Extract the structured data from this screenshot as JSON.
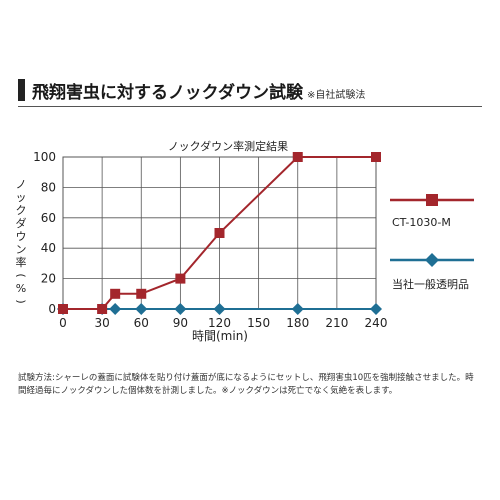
{
  "heading": {
    "title": "飛翔害虫に対するノックダウン試験",
    "note": "※自社試験法"
  },
  "chart_data": {
    "type": "line",
    "title": "ノックダウン率測定結果",
    "ylabel": "ノックダウン率(%)",
    "xlabel": "時間(min)",
    "xlim": [
      0,
      240
    ],
    "ylim": [
      0,
      100
    ],
    "x_ticks": [
      "0",
      "30",
      "60",
      "90",
      "120",
      "150",
      "180",
      "210",
      "240"
    ],
    "y_ticks": [
      "0",
      "20",
      "40",
      "60",
      "80",
      "100"
    ],
    "grid": true,
    "legend_position": "right",
    "series": [
      {
        "name": "CT-1030-M",
        "color": "#a3262c",
        "marker": "square",
        "x": [
          0,
          30,
          40,
          60,
          90,
          120,
          180,
          240
        ],
        "y": [
          0,
          0,
          10,
          10,
          20,
          50,
          100,
          100
        ]
      },
      {
        "name": "当社一般透明品",
        "color": "#1f6f94",
        "marker": "diamond",
        "x": [
          0,
          30,
          40,
          60,
          90,
          120,
          180,
          240
        ],
        "y": [
          0,
          0,
          0,
          0,
          0,
          0,
          0,
          0
        ]
      }
    ]
  },
  "footnote": "試験方法:シャーレの蓋面に試験体を貼り付け蓋面が底になるようにセットし、飛翔害虫10匹を強制接触させました。時間経過毎にノックダウンした個体数を計測しました。※ノックダウンは死亡でなく気絶を表します。"
}
